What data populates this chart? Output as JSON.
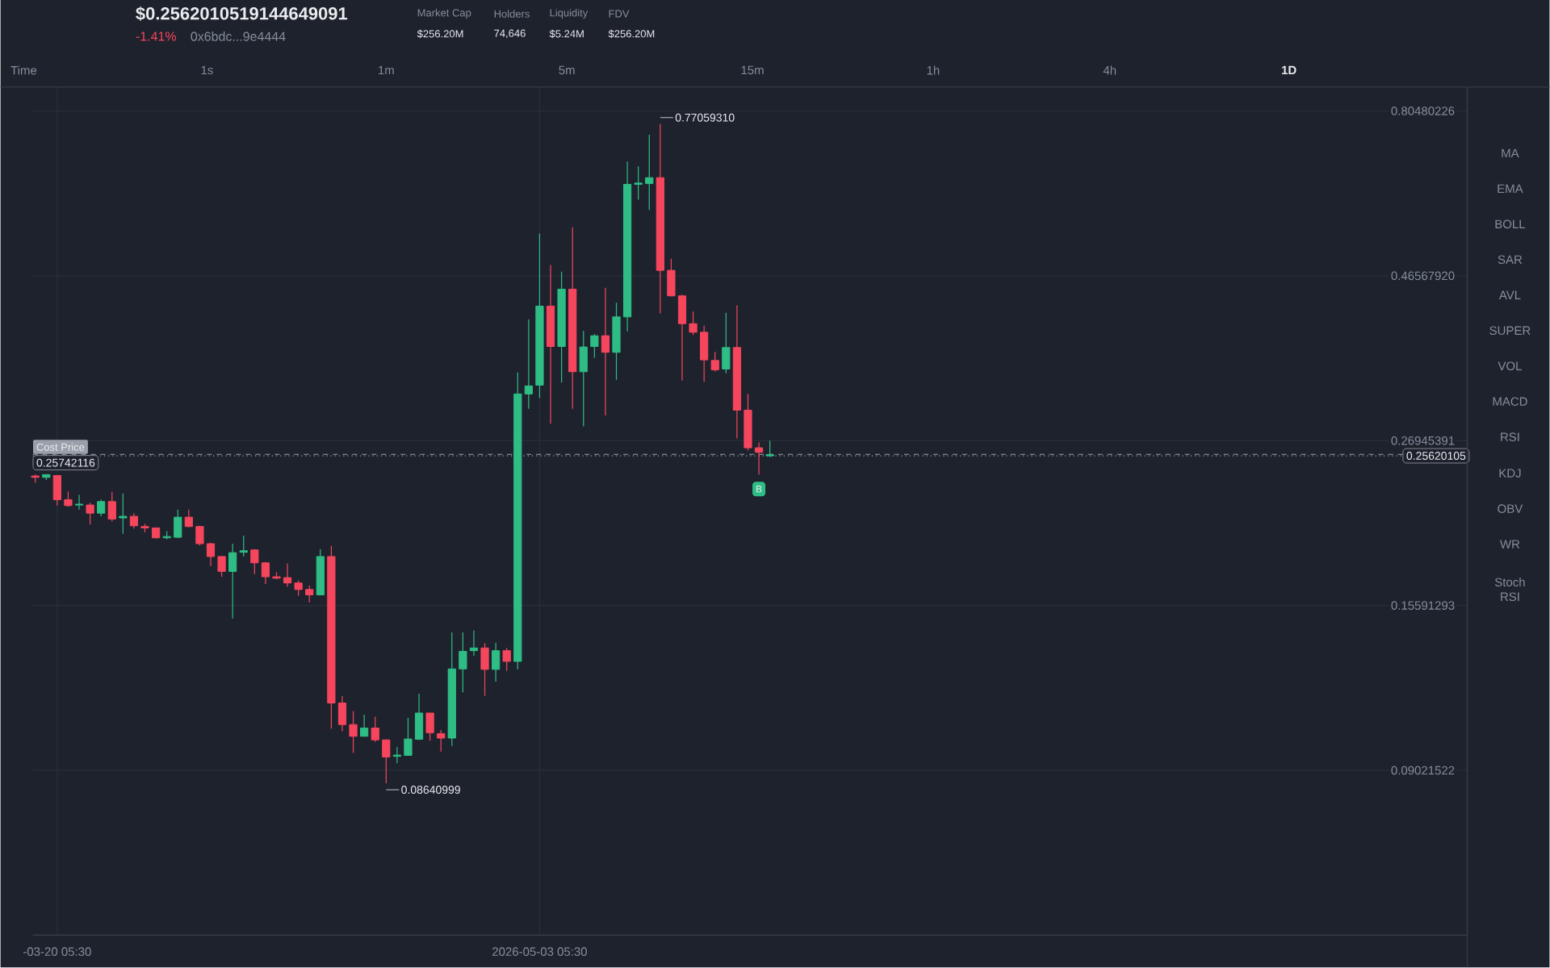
{
  "chart_data": {
    "type": "candlestick",
    "x": [
      "2026-03-18T05:30",
      "2026-03-19T05:30",
      "2026-03-20T05:30",
      "2026-03-21T05:30",
      "2026-03-22T05:30",
      "2026-03-23T05:30",
      "2026-03-24T05:30",
      "2026-03-25T05:30",
      "2026-03-26T05:30",
      "2026-03-27T05:30",
      "2026-03-28T05:30",
      "2026-03-29T05:30",
      "2026-03-30T05:30",
      "2026-03-31T05:30",
      "2026-04-01T05:30",
      "2026-04-02T05:30",
      "2026-04-03T05:30",
      "2026-04-04T05:30",
      "2026-04-05T05:30",
      "2026-04-06T05:30",
      "2026-04-07T05:30",
      "2026-04-08T05:30",
      "2026-04-09T05:30",
      "2026-04-10T05:30",
      "2026-04-11T05:30",
      "2026-04-12T05:30",
      "2026-04-13T05:30",
      "2026-04-14T05:30",
      "2026-04-15T05:30",
      "2026-04-16T05:30",
      "2026-04-17T05:30",
      "2026-04-18T05:30",
      "2026-04-19T05:30",
      "2026-04-20T05:30",
      "2026-04-21T05:30",
      "2026-04-22T05:30",
      "2026-04-23T05:30",
      "2026-04-24T05:30",
      "2026-04-25T05:30",
      "2026-04-26T05:30",
      "2026-04-27T05:30",
      "2026-04-28T05:30",
      "2026-04-29T05:30",
      "2026-04-30T05:30",
      "2026-05-01T05:30",
      "2026-05-02T05:30",
      "2026-05-03T05:30",
      "2026-05-04T05:30",
      "2026-05-05T05:30",
      "2026-05-06T05:30",
      "2026-05-07T05:30",
      "2026-05-08T05:30",
      "2026-05-09T05:30",
      "2026-05-10T05:30",
      "2026-05-11T05:30",
      "2026-05-12T05:30",
      "2026-05-13T05:30",
      "2026-05-14T05:30",
      "2026-05-15T05:30",
      "2026-05-16T05:30",
      "2026-05-17T05:30",
      "2026-05-18T05:30",
      "2026-05-19T05:30",
      "2026-05-20T05:30",
      "2026-05-21T05:30",
      "2026-05-22T05:30",
      "2026-05-23T05:30",
      "2026-05-24T05:30"
    ],
    "ohlc": [
      [
        0.2396,
        0.2407,
        0.2343,
        0.2385
      ],
      [
        0.2385,
        0.2407,
        0.2364,
        0.2407
      ],
      [
        0.24,
        0.24,
        0.2172,
        0.2215
      ],
      [
        0.2215,
        0.2275,
        0.2162,
        0.2172
      ],
      [
        0.2176,
        0.2251,
        0.2143,
        0.2182
      ],
      [
        0.2176,
        0.2192,
        0.204,
        0.2118
      ],
      [
        0.2118,
        0.2215,
        0.2096,
        0.2201
      ],
      [
        0.2201,
        0.2275,
        0.2062,
        0.2077
      ],
      [
        0.2085,
        0.2261,
        0.1978,
        0.2096
      ],
      [
        0.2096,
        0.2118,
        0.2013,
        0.2031
      ],
      [
        0.2026,
        0.2044,
        0.1987,
        0.2017
      ],
      [
        0.2017,
        0.2017,
        0.1948,
        0.1952
      ],
      [
        0.1952,
        0.1995,
        0.1943,
        0.196
      ],
      [
        0.1955,
        0.2143,
        0.1952,
        0.209
      ],
      [
        0.209,
        0.2143,
        0.2022,
        0.2026
      ],
      [
        0.2026,
        0.2031,
        0.1903,
        0.1914
      ],
      [
        0.1914,
        0.1921,
        0.1777,
        0.1834
      ],
      [
        0.1834,
        0.1837,
        0.1715,
        0.1746
      ],
      [
        0.1746,
        0.1914,
        0.1493,
        0.1858
      ],
      [
        0.186,
        0.1966,
        0.1834,
        0.187
      ],
      [
        0.1875,
        0.188,
        0.173,
        0.1796
      ],
      [
        0.1796,
        0.1801,
        0.1674,
        0.1715
      ],
      [
        0.1715,
        0.1741,
        0.17,
        0.1707
      ],
      [
        0.171,
        0.1793,
        0.1658,
        0.168
      ],
      [
        0.168,
        0.1695,
        0.1611,
        0.1644
      ],
      [
        0.1644,
        0.1665,
        0.1575,
        0.1615
      ],
      [
        0.1615,
        0.188,
        0.1615,
        0.1834
      ],
      [
        0.1834,
        0.19,
        0.1036,
        0.1128
      ],
      [
        0.1128,
        0.1155,
        0.1027,
        0.105
      ],
      [
        0.105,
        0.1098,
        0.0956,
        0.101
      ],
      [
        0.101,
        0.1085,
        0.101,
        0.1038
      ],
      [
        0.1038,
        0.1078,
        0.0991,
        0.0998
      ],
      [
        0.0998,
        0.0998,
        0.08640999,
        0.0943
      ],
      [
        0.0945,
        0.0975,
        0.0924,
        0.0949
      ],
      [
        0.0948,
        0.1074,
        0.0948,
        0.1001
      ],
      [
        0.1,
        0.1163,
        0.0998,
        0.1091
      ],
      [
        0.1091,
        0.1091,
        0.0995,
        0.1022
      ],
      [
        0.1019,
        0.1031,
        0.096,
        0.1004
      ],
      [
        0.1004,
        0.1426,
        0.0978,
        0.1263
      ],
      [
        0.1263,
        0.1426,
        0.1169,
        0.1339
      ],
      [
        0.1342,
        0.1435,
        0.1318,
        0.1354
      ],
      [
        0.1354,
        0.1376,
        0.1155,
        0.1261
      ],
      [
        0.1261,
        0.1378,
        0.1211,
        0.1342
      ],
      [
        0.1342,
        0.1354,
        0.1255,
        0.1295
      ],
      [
        0.1295,
        0.3378,
        0.1261,
        0.3146
      ],
      [
        0.3146,
        0.4027,
        0.2995,
        0.3231
      ],
      [
        0.3239,
        0.5357,
        0.3104,
        0.421
      ],
      [
        0.421,
        0.4826,
        0.2851,
        0.3683
      ],
      [
        0.3683,
        0.472,
        0.3268,
        0.4454
      ],
      [
        0.4454,
        0.5468,
        0.2995,
        0.3387
      ],
      [
        0.3387,
        0.3879,
        0.2826,
        0.3677
      ],
      [
        0.3683,
        0.3837,
        0.3548,
        0.3817
      ],
      [
        0.3817,
        0.4474,
        0.2929,
        0.3612
      ],
      [
        0.3612,
        0.4259,
        0.3297,
        0.4063
      ],
      [
        0.4063,
        0.6804,
        0.3872,
        0.6307
      ],
      [
        0.6307,
        0.6695,
        0.5994,
        0.6335
      ],
      [
        0.6323,
        0.7438,
        0.5795,
        0.6449
      ],
      [
        0.6449,
        0.7705931,
        0.411,
        0.4741
      ],
      [
        0.4741,
        0.4926,
        0.4348,
        0.4356
      ],
      [
        0.4356,
        0.4375,
        0.3289,
        0.3973
      ],
      [
        0.3973,
        0.4135,
        0.3827,
        0.3861
      ],
      [
        0.3861,
        0.3948,
        0.3274,
        0.3523
      ],
      [
        0.3516,
        0.3618,
        0.3387,
        0.3408
      ],
      [
        0.3417,
        0.4118,
        0.3369,
        0.367
      ],
      [
        0.367,
        0.4222,
        0.2715,
        0.2981
      ],
      [
        0.2981,
        0.3146,
        0.2608,
        0.2631
      ],
      [
        0.2631,
        0.2679,
        0.2407,
        0.2592
      ],
      [
        0.2562,
        0.2695,
        0.2551,
        0.2573
      ]
    ],
    "colors": [
      "#f6465d",
      "#2ebd85",
      "#f6465d",
      "#f6465d",
      "#2ebd85",
      "#f6465d",
      "#2ebd85",
      "#f6465d",
      "#2ebd85",
      "#f6465d",
      "#f6465d",
      "#f6465d",
      "#2ebd85",
      "#2ebd85",
      "#f6465d",
      "#f6465d",
      "#f6465d",
      "#f6465d",
      "#2ebd85",
      "#2ebd85",
      "#f6465d",
      "#f6465d",
      "#f6465d",
      "#f6465d",
      "#f6465d",
      "#f6465d",
      "#2ebd85",
      "#f6465d",
      "#f6465d",
      "#f6465d",
      "#2ebd85",
      "#f6465d",
      "#f6465d",
      "#2ebd85",
      "#2ebd85",
      "#2ebd85",
      "#f6465d",
      "#f6465d",
      "#2ebd85",
      "#2ebd85",
      "#2ebd85",
      "#f6465d",
      "#2ebd85",
      "#f6465d",
      "#2ebd85",
      "#2ebd85",
      "#2ebd85",
      "#f6465d",
      "#2ebd85",
      "#f6465d",
      "#2ebd85",
      "#2ebd85",
      "#f6465d",
      "#2ebd85",
      "#2ebd85",
      "#2ebd85",
      "#2ebd85",
      "#f6465d",
      "#f6465d",
      "#f6465d",
      "#f6465d",
      "#f6465d",
      "#f6465d",
      "#2ebd85",
      "#f6465d",
      "#f6465d",
      "#f6465d",
      "#2ebd85"
    ],
    "log": true,
    "xlim": [
      "2026-03-18T00:00",
      "2026-07-26T20:00"
    ],
    "xticks": [
      {
        "value": "2026-03-20T05:30",
        "label": "-03-20 05:30"
      },
      {
        "value": "2026-05-03T05:30",
        "label": "2026-05-03 05:30"
      }
    ],
    "ylim": [
      0.0522,
      0.871
    ],
    "yticks": [
      0.09021522,
      0.15591293,
      0.26945391,
      {
        "value": 0.4656792,
        "label": "0.46567920"
      },
      0.80480226
    ],
    "grid": true,
    "ref_lines": [
      {
        "axis": "y",
        "value": 0.25742116,
        "label": "Cost Price",
        "color": "#9aa0ab",
        "line_style": "dashed"
      },
      {
        "axis": "y",
        "value": 0.25620105,
        "label": "0.25620105",
        "color": "#9aa0ab",
        "line_style": "dotted"
      }
    ],
    "annotations": [
      {
        "text": "0.77059310",
        "x": "2026-05-14T05:30",
        "y": 0.7705931
      },
      {
        "text": "0.08640999",
        "x": "2026-04-19T05:30",
        "y": 0.08640999
      },
      {
        "text": "B",
        "x": "2026-05-23T05:30",
        "y": 0.2295
      },
      {
        "text": "0.25742116",
        "x": "2026-03-18T00:00",
        "y": 0.25742116
      },
      "$0.2562010519144649091",
      "-1.41%",
      "0x6bdc...9e4444",
      "Market Cap",
      "$256.20M",
      "Holders",
      "74,646",
      "Liquidity",
      "$5.24M",
      "FDV",
      "$256.20M",
      "Time",
      "1s",
      "1m",
      "5m",
      "15m",
      "1h",
      "4h",
      "1D",
      "MA",
      "EMA",
      "BOLL",
      "SAR",
      "AVL",
      "SUPER",
      "VOL",
      "MACD",
      "RSI",
      "KDJ",
      "OBV",
      "WR",
      "Stoch RSI"
    ]
  }
}
